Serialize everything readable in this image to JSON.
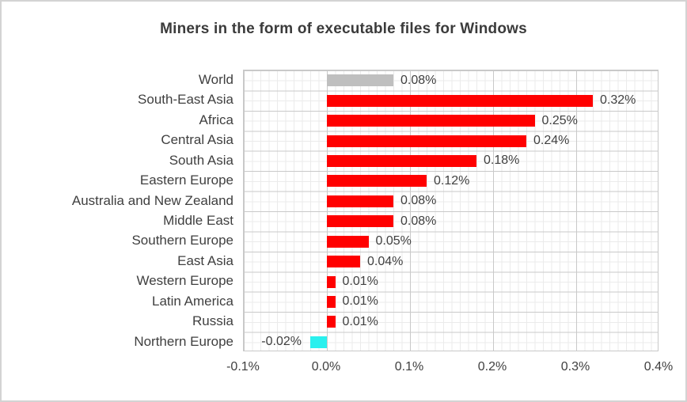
{
  "chart_data": {
    "type": "bar",
    "orientation": "horizontal",
    "title": "Miners in the form of executable files for Windows",
    "categories": [
      "World",
      "South-East Asia",
      "Africa",
      "Central Asia",
      "South Asia",
      "Eastern Europe",
      "Australia and New Zealand",
      "Middle East",
      "Southern Europe",
      "East Asia",
      "Western Europe",
      "Latin America",
      "Russia",
      "Northern Europe"
    ],
    "values": [
      0.08,
      0.32,
      0.25,
      0.24,
      0.18,
      0.12,
      0.08,
      0.08,
      0.05,
      0.04,
      0.01,
      0.01,
      0.01,
      -0.02
    ],
    "data_labels": [
      "0.08%",
      "0.32%",
      "0.25%",
      "0.24%",
      "0.18%",
      "0.12%",
      "0.08%",
      "0.08%",
      "0.05%",
      "0.04%",
      "0.01%",
      "0.01%",
      "0.01%",
      "-0.02%"
    ],
    "bar_colors": [
      "#bfbfbf",
      "#ff0000",
      "#ff0000",
      "#ff0000",
      "#ff0000",
      "#ff0000",
      "#ff0000",
      "#ff0000",
      "#ff0000",
      "#ff0000",
      "#ff0000",
      "#ff0000",
      "#ff0000",
      "#2af0ee"
    ],
    "x_ticks": [
      "-0.1%",
      "0.0%",
      "0.1%",
      "0.2%",
      "0.3%",
      "0.4%"
    ],
    "xlim": [
      -0.1,
      0.4
    ],
    "x_major_step": 0.1,
    "x_minor_step": 0.01,
    "grid": "major and minor gridlines, both axes",
    "legend": "none",
    "colors": {
      "series_default": "#ff0000",
      "series_world": "#bfbfbf",
      "series_negative": "#2af0ee",
      "text": "#3f3f3f",
      "title_text": "#3b3b3b",
      "grid_major": "#c9c9c9",
      "grid_minor": "#ebebeb",
      "frame_border": "#d3d3d3",
      "background": "#ffffff"
    }
  }
}
